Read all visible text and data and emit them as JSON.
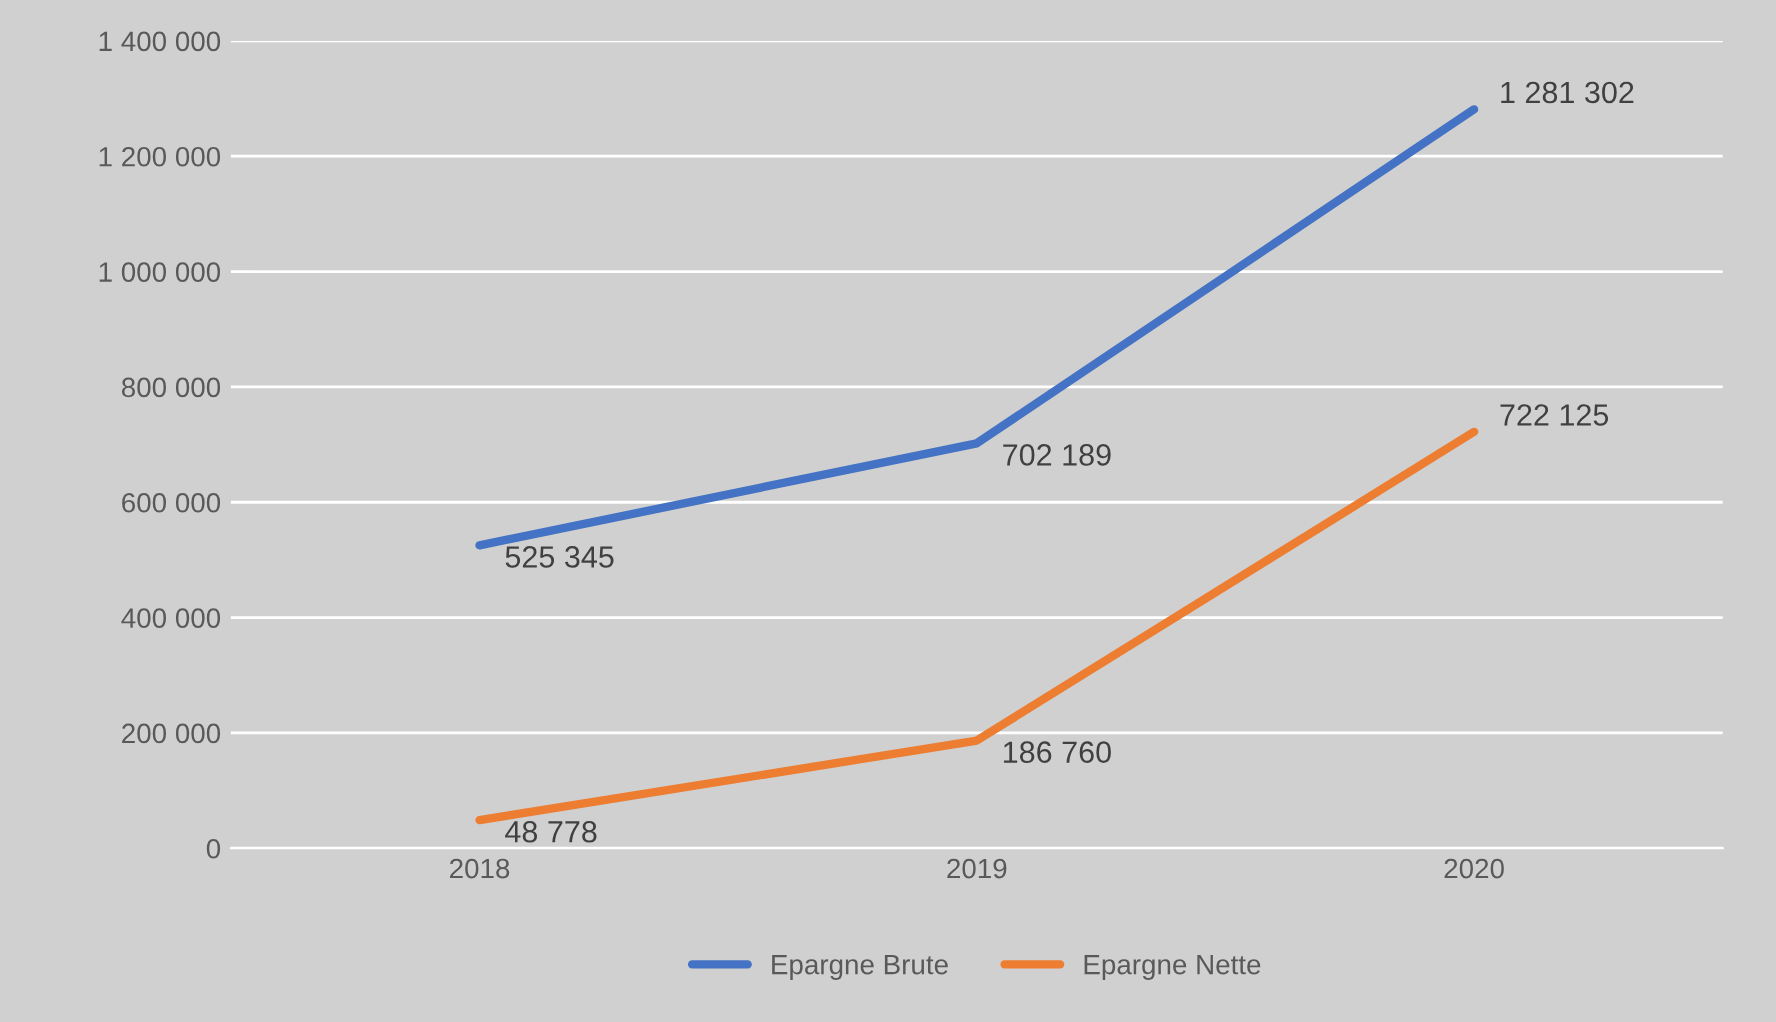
{
  "chart_data": {
    "type": "line",
    "categories": [
      "2018",
      "2019",
      "2020"
    ],
    "series": [
      {
        "name": "Epargne Brute",
        "color": "#4472c4",
        "values": [
          525345,
          702189,
          1281302
        ],
        "value_labels": [
          "525 345",
          "702 189",
          "1 281 302"
        ]
      },
      {
        "name": "Epargne Nette",
        "color": "#ed7d31",
        "values": [
          48778,
          186760,
          722125
        ],
        "value_labels": [
          "48 778",
          "186 760",
          "722 125"
        ]
      }
    ],
    "ylim": [
      0,
      1400000
    ],
    "yticks": [
      0,
      {
        "value": 200000,
        "label": "200 000"
      },
      {
        "value": 400000,
        "label": "400 000"
      },
      {
        "value": 600000,
        "label": "600 000"
      },
      {
        "value": 800000,
        "label": "800 000"
      },
      {
        "value": 1000000,
        "label": "1 000 000"
      },
      {
        "value": 1200000,
        "label": "1 200 000"
      },
      {
        "value": 1400000,
        "label": "1 400 000"
      }
    ],
    "grid": "y",
    "legend": "bottom",
    "marker": "none",
    "line_style": "solid"
  }
}
